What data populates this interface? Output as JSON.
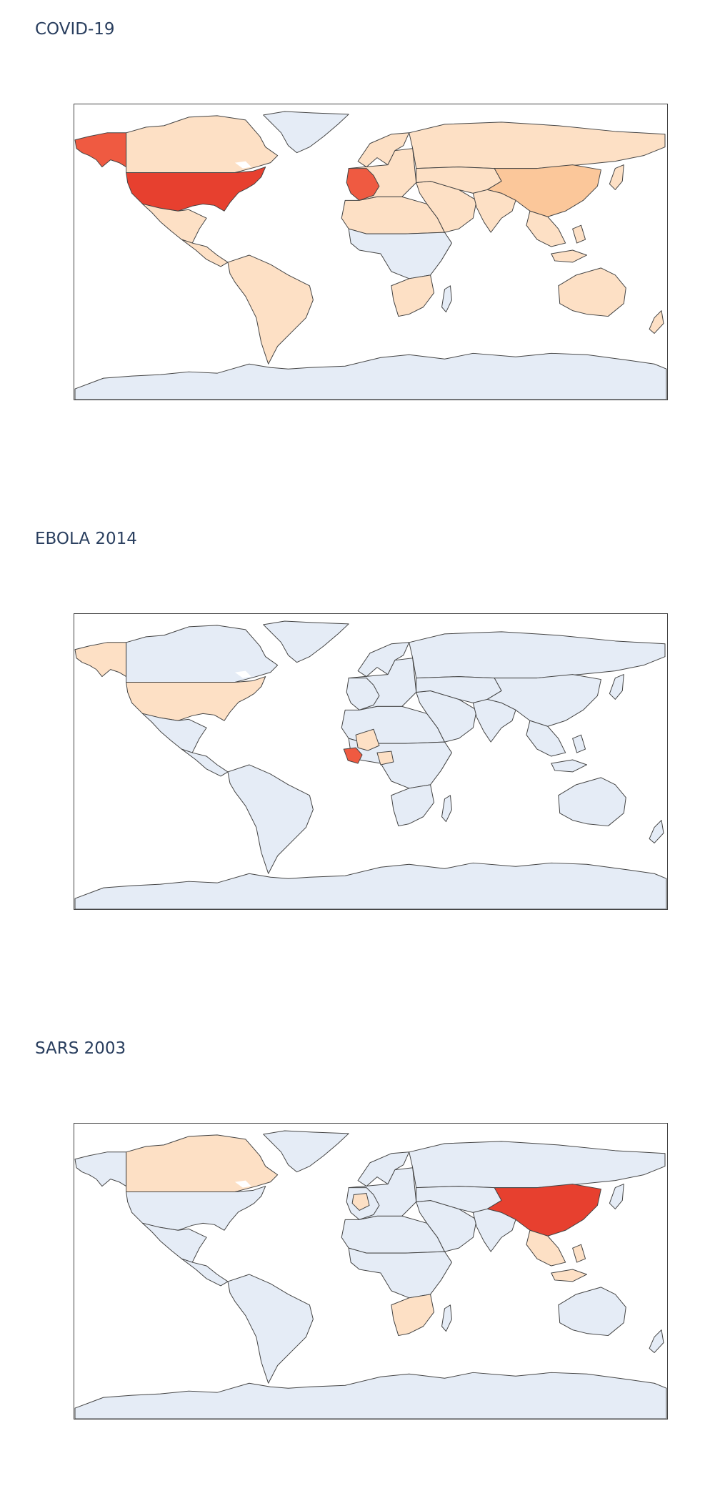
{
  "colors": {
    "base_land": "#e5ecf6",
    "light": "#fde0c5",
    "medium": "#fbc79a",
    "high": "#ef5a41",
    "highest": "#e7402f",
    "ocean": "#ffffff",
    "border": "#444444",
    "title": "#2a3f5f"
  },
  "maps": [
    {
      "title": "COVID-19",
      "region_levels": {
        "alaska": "high",
        "canada": "light",
        "greenland": "base",
        "usa": "highest",
        "mexico": "light",
        "central_america": "light",
        "south_america": "light",
        "europe": "light",
        "western_europe": "high",
        "scandinavia": "light",
        "africa_north": "light",
        "africa_central": "base",
        "africa_south": "light",
        "madagascar": "base",
        "middle_east": "light",
        "russia": "light",
        "central_asia": "light",
        "china": "medium",
        "india": "light",
        "southeast_asia": "light",
        "japan": "light",
        "australia": "light",
        "new_zealand": "light",
        "antarctica": "base"
      }
    },
    {
      "title": "EBOLA 2014",
      "region_levels": {
        "alaska": "light",
        "canada": "base",
        "greenland": "base",
        "usa": "light",
        "mexico": "base",
        "central_america": "base",
        "south_america": "base",
        "europe": "base",
        "western_europe": "base",
        "scandinavia": "base",
        "africa_north": "base",
        "africa_central": "base",
        "africa_south": "base",
        "madagascar": "base",
        "middle_east": "base",
        "russia": "base",
        "central_asia": "base",
        "china": "base",
        "india": "base",
        "southeast_asia": "base",
        "japan": "base",
        "australia": "base",
        "new_zealand": "base",
        "antarctica": "base",
        "mali": "light",
        "nigeria": "light",
        "west_africa_outbreak": "high"
      }
    },
    {
      "title": "SARS 2003",
      "region_levels": {
        "alaska": "base",
        "canada": "light",
        "greenland": "base",
        "usa": "base",
        "mexico": "base",
        "central_america": "base",
        "south_america": "base",
        "europe": "base",
        "western_europe": "base",
        "france": "light",
        "scandinavia": "base",
        "africa_north": "base",
        "africa_central": "base",
        "africa_south": "light",
        "madagascar": "base",
        "middle_east": "base",
        "russia": "base",
        "central_asia": "base",
        "china": "highest",
        "india": "base",
        "southeast_asia": "light",
        "japan": "base",
        "australia": "base",
        "new_zealand": "base",
        "antarctica": "base"
      }
    }
  ]
}
